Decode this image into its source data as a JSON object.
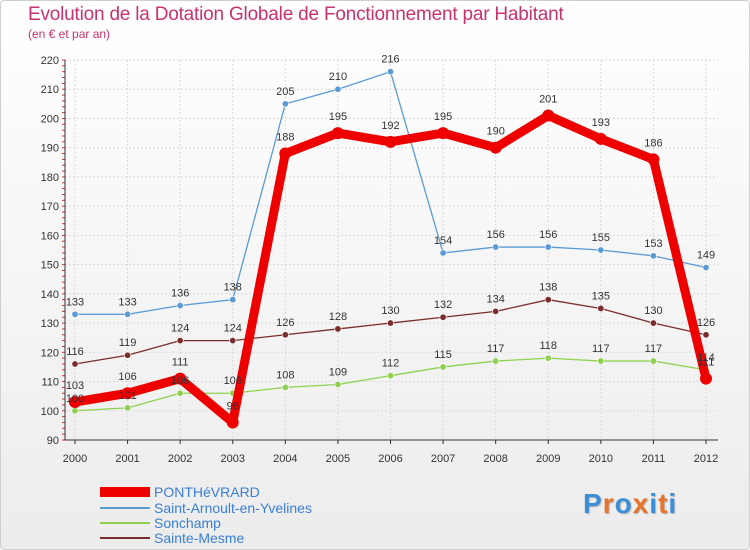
{
  "title": "Evolution de la Dotation Globale de Fonctionnement par Habitant",
  "subtitle": "(en € et par an)",
  "logo": {
    "text": "Proxiti",
    "letters": [
      "P",
      "r",
      "o",
      "x",
      "i",
      "t",
      "i"
    ],
    "colors": [
      "#3a8fd8",
      "#e8732a",
      "#3a8fd8",
      "#e8732a",
      "#3a8fd8",
      "#e8732a",
      "#3a8fd8"
    ]
  },
  "chart_data": {
    "type": "line",
    "title": "Evolution de la Dotation Globale de Fonctionnement par Habitant",
    "subtitle": "(en € et par an)",
    "xlabel": "",
    "ylabel": "",
    "ylim": [
      90,
      220
    ],
    "yticks": [
      90,
      100,
      110,
      120,
      130,
      140,
      150,
      160,
      170,
      180,
      190,
      200,
      210,
      220
    ],
    "categories": [
      "2000",
      "2001",
      "2002",
      "2003",
      "2004",
      "2005",
      "2006",
      "2007",
      "2008",
      "2009",
      "2010",
      "2011",
      "2012"
    ],
    "grid": true,
    "legend_position": "bottom-left",
    "series": [
      {
        "name": "Saint-Arnoult-en-Yvelines",
        "color": "#5b9bd5",
        "style": "thin",
        "values": [
          133,
          133,
          136,
          138,
          205,
          210,
          216,
          154,
          156,
          156,
          155,
          153,
          149
        ],
        "labels": [
          "133",
          "133",
          "136",
          "138",
          "205",
          "210",
          "216",
          "154",
          "156",
          "156",
          "155",
          "153",
          "149"
        ]
      },
      {
        "name": "Sonchamp",
        "color": "#8fd14f",
        "style": "thin",
        "values": [
          100,
          101,
          106,
          106,
          108,
          109,
          112,
          115,
          117,
          118,
          117,
          117,
          114
        ],
        "labels": [
          "100",
          "101",
          "106",
          "106",
          "108",
          "109",
          "112",
          "115",
          "117",
          "118",
          "117",
          "117",
          "114"
        ]
      },
      {
        "name": "Sainte-Mesme",
        "color": "#7b2d2d",
        "style": "thin",
        "values": [
          116,
          119,
          124,
          124,
          126,
          128,
          130,
          132,
          134,
          138,
          135,
          130,
          126
        ],
        "labels": [
          "116",
          "119",
          "124",
          "124",
          "126",
          "128",
          "130",
          "132",
          "134",
          "138",
          "135",
          "130",
          "126"
        ]
      },
      {
        "name": "PONTHéVRARD",
        "color": "#ee0000",
        "style": "thick",
        "values": [
          103,
          106,
          111,
          96,
          188,
          195,
          192,
          195,
          190,
          201,
          193,
          186,
          111
        ],
        "labels": [
          "103",
          "106",
          "111",
          "96",
          "188",
          "195",
          "192",
          "195",
          "190",
          "201",
          "193",
          "186",
          "111"
        ]
      }
    ],
    "legend": [
      {
        "name": "PONTHéVRARD",
        "color": "#ee0000",
        "style": "thick"
      },
      {
        "name": "Saint-Arnoult-en-Yvelines",
        "color": "#5b9bd5",
        "style": "thin"
      },
      {
        "name": "Sonchamp",
        "color": "#8fd14f",
        "style": "thin"
      },
      {
        "name": "Sainte-Mesme",
        "color": "#7b2d2d",
        "style": "thin"
      }
    ]
  }
}
